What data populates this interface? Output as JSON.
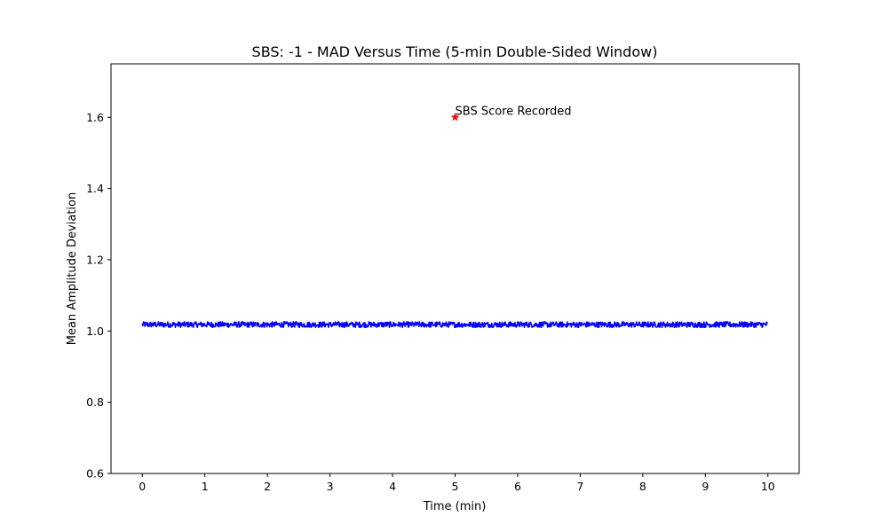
{
  "chart_data": {
    "type": "line",
    "title": "SBS: -1 - MAD Versus Time (5-min Double-Sided Window)",
    "xlabel": "Time (min)",
    "ylabel": "Mean Amplitude Deviation",
    "xlim": [
      -0.5,
      10.5
    ],
    "ylim": [
      0.6,
      1.75
    ],
    "xticks": [
      0,
      1,
      2,
      3,
      4,
      5,
      6,
      7,
      8,
      9,
      10
    ],
    "yticks": [
      0.6,
      0.8,
      1.0,
      1.2,
      1.4,
      1.6
    ],
    "xtick_labels": [
      "0",
      "1",
      "2",
      "3",
      "4",
      "5",
      "6",
      "7",
      "8",
      "9",
      "10"
    ],
    "ytick_labels": [
      "0.6",
      "0.8",
      "1.0",
      "1.2",
      "1.4",
      "1.6"
    ],
    "grid": false,
    "series": [
      {
        "color": "#0000ff",
        "x_start": 0,
        "x_end": 10,
        "mean": 1.018,
        "noise_amplitude": 0.008
      }
    ],
    "markers": [
      {
        "x": 5,
        "y": 1.6,
        "color": "#ff0000",
        "shape": "star",
        "label": "SBS Score Recorded"
      }
    ]
  }
}
